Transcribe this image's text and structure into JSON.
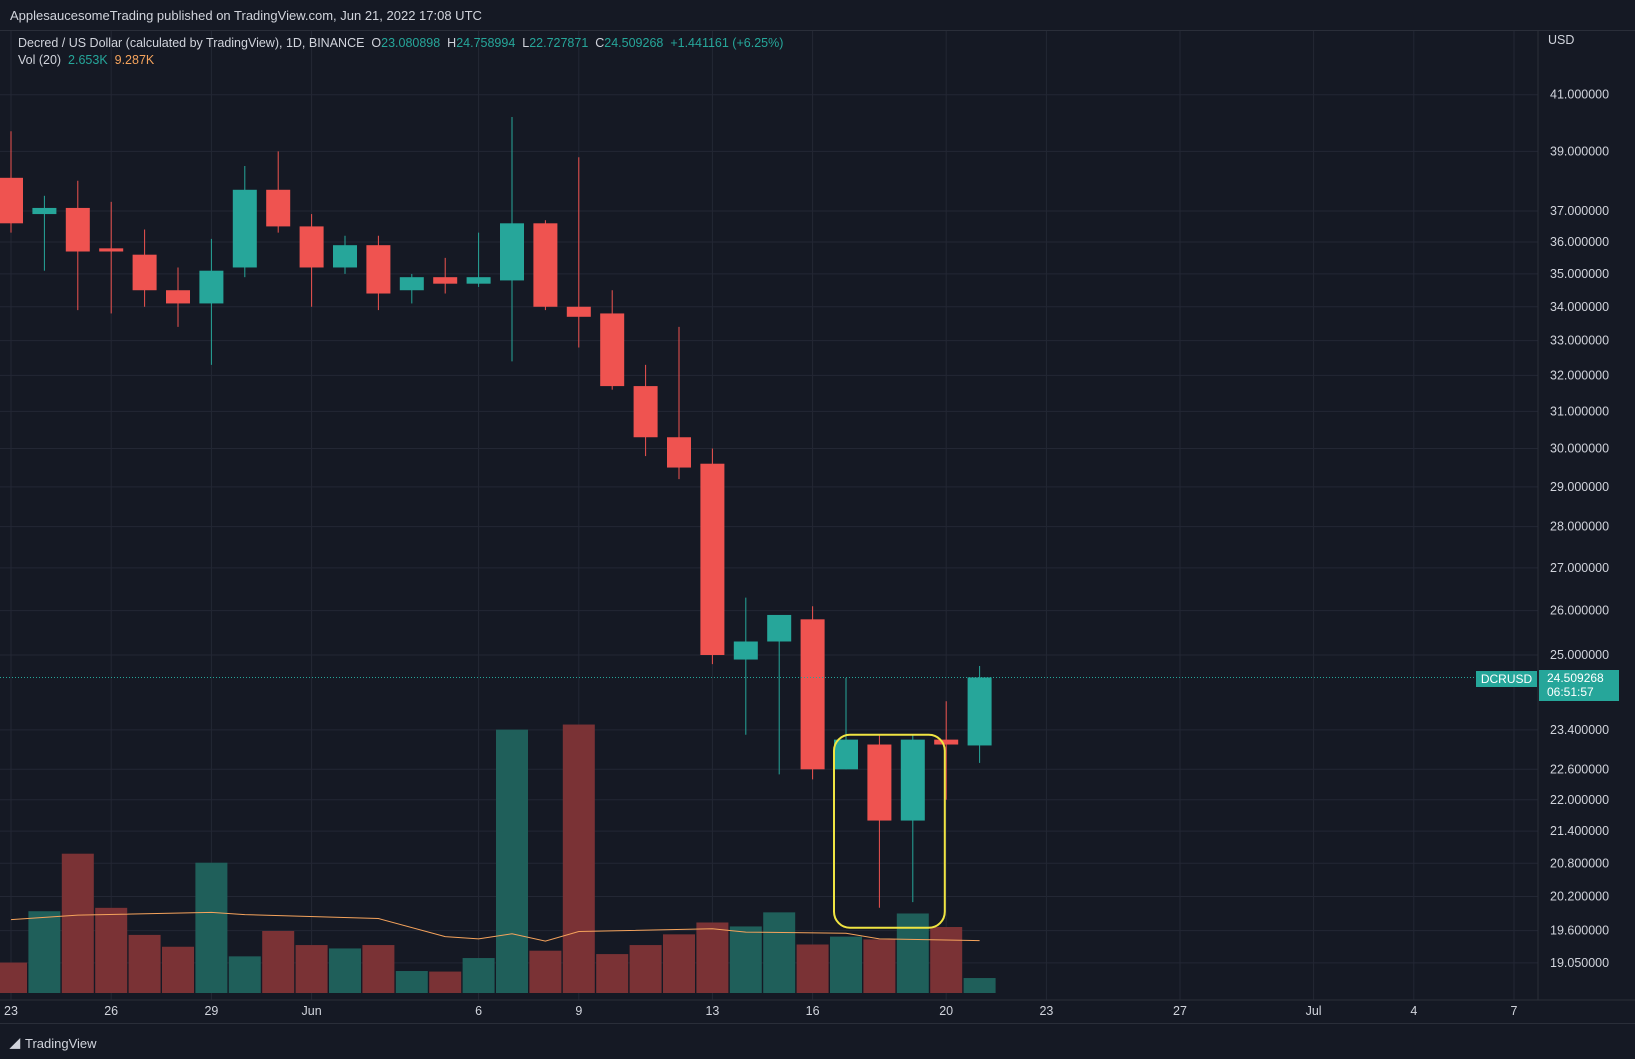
{
  "header": {
    "publisher": "ApplesaucesomeTrading published on TradingView.com, Jun 21, 2022 17:08 UTC"
  },
  "legend": {
    "symbol": "Decred / US Dollar (calculated by TradingView), 1D, BINANCE",
    "o_label": "O",
    "o_value": "23.080898",
    "h_label": "H",
    "h_value": "24.758994",
    "l_label": "L",
    "l_value": "22.727871",
    "c_label": "C",
    "c_value": "24.509268",
    "change": "+1.441161 (+6.25%)",
    "vol_label": "Vol (20)",
    "vol_value": "2.653K",
    "vol_ma_value": "9.287K"
  },
  "price_scale": {
    "currency": "USD",
    "last_symbol": "DCRUSD",
    "last_price": "24.509268",
    "countdown": "06:51:57"
  },
  "footer": {
    "brand": "TradingView"
  },
  "colors": {
    "up": "#26a69a",
    "down": "#ef5350",
    "background": "#151924",
    "grid": "#232734",
    "volume_ma": "#f5a35c",
    "annotation": "#f0e442"
  },
  "chart_data": {
    "type": "candlestick",
    "scale": "log",
    "y_ticks": [
      "41.000000",
      "39.000000",
      "37.000000",
      "36.000000",
      "35.000000",
      "34.000000",
      "33.000000",
      "32.000000",
      "31.000000",
      "30.000000",
      "29.000000",
      "28.000000",
      "27.000000",
      "26.000000",
      "25.000000",
      "23.400000",
      "22.600000",
      "22.000000",
      "21.400000",
      "20.800000",
      "20.200000",
      "19.600000",
      "19.050000"
    ],
    "x_ticks": [
      {
        "label": "23",
        "date": "2022-05-23"
      },
      {
        "label": "26",
        "date": "2022-05-26"
      },
      {
        "label": "29",
        "date": "2022-05-29"
      },
      {
        "label": "Jun",
        "date": "2022-06-01"
      },
      {
        "label": "6",
        "date": "2022-06-06"
      },
      {
        "label": "9",
        "date": "2022-06-09"
      },
      {
        "label": "13",
        "date": "2022-06-13"
      },
      {
        "label": "16",
        "date": "2022-06-16"
      },
      {
        "label": "20",
        "date": "2022-06-20"
      },
      {
        "label": "23",
        "date": "2022-06-23"
      },
      {
        "label": "27",
        "date": "2022-06-27"
      },
      {
        "label": "Jul",
        "date": "2022-07-01"
      },
      {
        "label": "4",
        "date": "2022-07-04"
      },
      {
        "label": "7",
        "date": "2022-07-07"
      }
    ],
    "candles": [
      {
        "date": "2022-05-23",
        "open": 38.1,
        "high": 39.7,
        "low": 36.3,
        "close": 36.6,
        "volume": 5.4
      },
      {
        "date": "2022-05-24",
        "open": 36.9,
        "high": 37.5,
        "low": 35.1,
        "close": 37.1,
        "volume": 14.5
      },
      {
        "date": "2022-05-25",
        "open": 37.1,
        "high": 38.0,
        "low": 33.9,
        "close": 35.7,
        "volume": 24.7
      },
      {
        "date": "2022-05-26",
        "open": 35.8,
        "high": 37.3,
        "low": 33.8,
        "close": 35.7,
        "volume": 15.1
      },
      {
        "date": "2022-05-27",
        "open": 35.6,
        "high": 36.4,
        "low": 34.0,
        "close": 34.5,
        "volume": 10.3
      },
      {
        "date": "2022-05-28",
        "open": 34.5,
        "high": 35.2,
        "low": 33.4,
        "close": 34.1,
        "volume": 8.2
      },
      {
        "date": "2022-05-29",
        "open": 34.1,
        "high": 36.1,
        "low": 32.3,
        "close": 35.1,
        "volume": 23.1
      },
      {
        "date": "2022-05-30",
        "open": 35.2,
        "high": 38.5,
        "low": 34.9,
        "close": 37.7,
        "volume": 6.5
      },
      {
        "date": "2022-05-31",
        "open": 37.7,
        "high": 39.0,
        "low": 36.3,
        "close": 36.5,
        "volume": 11.0
      },
      {
        "date": "2022-06-01",
        "open": 36.5,
        "high": 36.9,
        "low": 34.0,
        "close": 35.2,
        "volume": 8.5
      },
      {
        "date": "2022-06-02",
        "open": 35.2,
        "high": 36.2,
        "low": 35.0,
        "close": 35.9,
        "volume": 7.9
      },
      {
        "date": "2022-06-03",
        "open": 35.9,
        "high": 36.2,
        "low": 33.9,
        "close": 34.4,
        "volume": 8.5
      },
      {
        "date": "2022-06-04",
        "open": 34.5,
        "high": 35.0,
        "low": 34.1,
        "close": 34.9,
        "volume": 3.9
      },
      {
        "date": "2022-06-05",
        "open": 34.9,
        "high": 35.5,
        "low": 34.4,
        "close": 34.7,
        "volume": 3.8
      },
      {
        "date": "2022-06-06",
        "open": 34.7,
        "high": 36.3,
        "low": 34.6,
        "close": 34.9,
        "volume": 6.2
      },
      {
        "date": "2022-06-07",
        "open": 34.8,
        "high": 40.2,
        "low": 32.4,
        "close": 36.6,
        "volume": 46.7
      },
      {
        "date": "2022-06-08",
        "open": 36.6,
        "high": 36.7,
        "low": 33.9,
        "close": 34.0,
        "volume": 7.5
      },
      {
        "date": "2022-06-09",
        "open": 34.0,
        "high": 38.8,
        "low": 32.8,
        "close": 33.7,
        "volume": 47.6
      },
      {
        "date": "2022-06-10",
        "open": 33.8,
        "high": 34.5,
        "low": 31.6,
        "close": 31.7,
        "volume": 6.9
      },
      {
        "date": "2022-06-11",
        "open": 31.7,
        "high": 32.3,
        "low": 29.8,
        "close": 30.3,
        "volume": 8.5
      },
      {
        "date": "2022-06-12",
        "open": 30.3,
        "high": 33.4,
        "low": 29.2,
        "close": 29.5,
        "volume": 10.4
      },
      {
        "date": "2022-06-13",
        "open": 29.6,
        "high": 30.0,
        "low": 24.8,
        "close": 25.0,
        "volume": 12.5
      },
      {
        "date": "2022-06-14",
        "open": 24.9,
        "high": 26.3,
        "low": 23.3,
        "close": 25.3,
        "volume": 11.8
      },
      {
        "date": "2022-06-15",
        "open": 25.3,
        "high": 25.9,
        "low": 22.5,
        "close": 25.9,
        "volume": 14.3
      },
      {
        "date": "2022-06-16",
        "open": 25.8,
        "high": 26.1,
        "low": 22.4,
        "close": 22.6,
        "volume": 8.6
      },
      {
        "date": "2022-06-17",
        "open": 22.6,
        "high": 24.5,
        "low": 22.6,
        "close": 23.2,
        "volume": 10.0
      },
      {
        "date": "2022-06-18",
        "open": 23.1,
        "high": 23.3,
        "low": 20.0,
        "close": 21.6,
        "volume": 9.5
      },
      {
        "date": "2022-06-19",
        "open": 21.6,
        "high": 23.3,
        "low": 20.1,
        "close": 23.2,
        "volume": 14.1
      },
      {
        "date": "2022-06-20",
        "open": 23.2,
        "high": 24.0,
        "low": 22.0,
        "close": 23.1,
        "volume": 11.7
      },
      {
        "date": "2022-06-21",
        "open": 23.080898,
        "high": 24.758994,
        "low": 22.727871,
        "close": 24.509268,
        "volume": 2.653
      }
    ],
    "volume_unit": "K",
    "volume_ma20": [
      {
        "date": "2022-05-23",
        "value": 13.0
      },
      {
        "date": "2022-05-25",
        "value": 13.8
      },
      {
        "date": "2022-05-29",
        "value": 14.3
      },
      {
        "date": "2022-05-30",
        "value": 13.9
      },
      {
        "date": "2022-06-03",
        "value": 13.2
      },
      {
        "date": "2022-06-05",
        "value": 10.0
      },
      {
        "date": "2022-06-06",
        "value": 9.6
      },
      {
        "date": "2022-06-07",
        "value": 10.5
      },
      {
        "date": "2022-06-08",
        "value": 9.2
      },
      {
        "date": "2022-06-09",
        "value": 10.9
      },
      {
        "date": "2022-06-13",
        "value": 11.4
      },
      {
        "date": "2022-06-14",
        "value": 10.8
      },
      {
        "date": "2022-06-17",
        "value": 10.6
      },
      {
        "date": "2022-06-18",
        "value": 9.6
      },
      {
        "date": "2022-06-20",
        "value": 9.4
      },
      {
        "date": "2022-06-21",
        "value": 9.287
      }
    ],
    "annotation": {
      "type": "rounded-rectangle",
      "from": "2022-06-17",
      "to": "2022-06-19",
      "top": 23.3,
      "bottom": 19.65
    }
  }
}
